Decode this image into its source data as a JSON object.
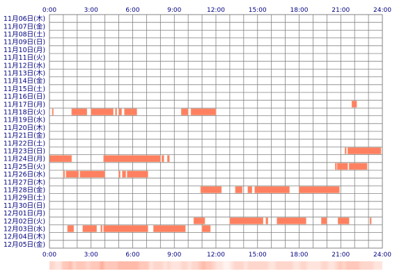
{
  "chart_data": {
    "type": "timeline",
    "title": "",
    "xlabel": "",
    "ylabel": "",
    "x_range_hours": [
      0,
      24
    ],
    "x_tick_labels": [
      "0:00",
      "3:00",
      "6:00",
      "9:00",
      "12:00",
      "15:00",
      "18:00",
      "21:00",
      "24:00"
    ],
    "grid": true,
    "colors": {
      "bar": "#ff8060",
      "bar_edge": "#f7a88a",
      "grid": "#808080",
      "border": "#808080",
      "label_text": "#000080",
      "background": "#ffffff",
      "strip_base": "#ffe4d8"
    },
    "days": [
      {
        "label": "11月06日(木)",
        "segments": []
      },
      {
        "label": "11月07日(金)",
        "segments": []
      },
      {
        "label": "11月08日(土)",
        "segments": []
      },
      {
        "label": "11月09日(日)",
        "segments": []
      },
      {
        "label": "11月10日(月)",
        "segments": []
      },
      {
        "label": "11月11日(火)",
        "segments": []
      },
      {
        "label": "11月12日(水)",
        "segments": []
      },
      {
        "label": "11月13日(木)",
        "segments": []
      },
      {
        "label": "11月14日(金)",
        "segments": []
      },
      {
        "label": "11月15日(土)",
        "segments": []
      },
      {
        "label": "11月16日(日)",
        "segments": []
      },
      {
        "label": "11月17日(月)",
        "segments": [
          [
            21.8,
            22.15
          ]
        ]
      },
      {
        "label": "11月18日(火)",
        "segments": [
          [
            0.2,
            0.28
          ],
          [
            1.6,
            2.7
          ],
          [
            3.0,
            4.6
          ],
          [
            4.75,
            4.85
          ],
          [
            5.0,
            5.2
          ],
          [
            5.4,
            6.3
          ],
          [
            9.5,
            10.0
          ],
          [
            10.2,
            12.0
          ]
        ]
      },
      {
        "label": "11月19日(水)",
        "segments": []
      },
      {
        "label": "11月20日(木)",
        "segments": []
      },
      {
        "label": "11月21日(金)",
        "segments": []
      },
      {
        "label": "11月22日(土)",
        "segments": []
      },
      {
        "label": "11月23日(日)",
        "segments": [
          [
            21.3,
            21.4
          ],
          [
            21.5,
            23.9
          ]
        ]
      },
      {
        "label": "11月24日(月)",
        "segments": [
          [
            0.0,
            1.6
          ],
          [
            3.9,
            8.0
          ],
          [
            8.1,
            8.25
          ],
          [
            8.5,
            8.65
          ]
        ]
      },
      {
        "label": "11月25日(火)",
        "segments": [
          [
            20.6,
            20.7
          ],
          [
            20.75,
            21.5
          ],
          [
            21.6,
            22.9
          ]
        ]
      },
      {
        "label": "11月26日(水)",
        "segments": [
          [
            1.0,
            1.1
          ],
          [
            1.2,
            2.1
          ],
          [
            2.2,
            4.0
          ],
          [
            5.0,
            5.1
          ],
          [
            5.25,
            5.5
          ],
          [
            5.6,
            7.1
          ]
        ]
      },
      {
        "label": "11月27日(木)",
        "segments": []
      },
      {
        "label": "11月28日(金)",
        "segments": [
          [
            10.9,
            12.4
          ],
          [
            13.4,
            13.9
          ],
          [
            14.3,
            14.6
          ],
          [
            14.8,
            17.3
          ],
          [
            18.0,
            20.9
          ]
        ]
      },
      {
        "label": "11月29日(土)",
        "segments": []
      },
      {
        "label": "11月30日(日)",
        "segments": []
      },
      {
        "label": "12月01日(月)",
        "segments": []
      },
      {
        "label": "12月02日(火)",
        "segments": [
          [
            10.4,
            11.2
          ],
          [
            13.0,
            15.4
          ],
          [
            15.6,
            15.75
          ],
          [
            16.4,
            18.5
          ],
          [
            19.6,
            20.0
          ],
          [
            20.8,
            21.6
          ],
          [
            23.1,
            23.2
          ]
        ]
      },
      {
        "label": "12月03日(水)",
        "segments": [
          [
            1.3,
            1.75
          ],
          [
            2.4,
            3.4
          ],
          [
            3.7,
            3.8
          ],
          [
            3.9,
            7.1
          ],
          [
            7.5,
            9.8
          ],
          [
            11.0,
            11.6
          ]
        ]
      },
      {
        "label": "12月04日(木)",
        "segments": []
      },
      {
        "label": "12月05日(金)",
        "segments": []
      }
    ]
  }
}
